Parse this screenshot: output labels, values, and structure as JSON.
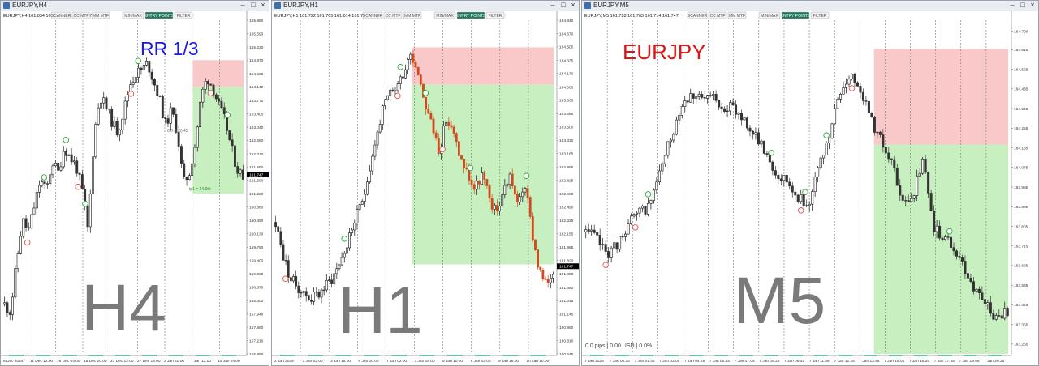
{
  "windows": [
    {
      "id": "h4",
      "window_title": "EURJPY,H4",
      "info_line": "EURJPY,H4  161.834 161.749 161.674 161.747",
      "toolbar": [
        "SCANNER",
        "CC MTF",
        "MM MTF",
        "MIN/MAX",
        "ENTRY POINTS",
        "FILTER"
      ],
      "active_button": "ENTRY POINTS",
      "big_label": "H4",
      "overlay_label": "RR 1/3",
      "annotations": [
        "0.6 (2.5):45",
        "tp1 = 24.9th"
      ],
      "window_controls": [
        "–",
        "□",
        "×"
      ]
    },
    {
      "id": "h1",
      "window_title": "EURJPY,H1",
      "info_line": "EURJPY,H1  161.722 161.765 161.614 161.747",
      "toolbar": [
        "SCANNER",
        "CC MTF",
        "MM MTF",
        "MIN/MAX",
        "ENTRY POINTS",
        "FILTER"
      ],
      "active_button": "ENTRY POINTS",
      "big_label": "H1",
      "window_controls": [
        "–",
        "□",
        "×"
      ]
    },
    {
      "id": "m5",
      "window_title": "EURJPY,M5",
      "info_line": "EURJPY,M5  161.728 161.763 161.714 161.747",
      "toolbar": [
        "SCANNER",
        "CC MTF",
        "MM MTF",
        "MIN/MAX",
        "ENTRY POINTS",
        "FILTER"
      ],
      "active_button": "ENTRY POINTS",
      "big_label": "M5",
      "overlay_label": "EURJPY",
      "status_text": "0.0 pips | 0.00 USD | 0.0%",
      "window_controls": [
        "–",
        "□",
        "×"
      ]
    }
  ],
  "colors": {
    "bull": "#111111",
    "bear": "#d04a1a",
    "stop_zone": "#f9c9c9",
    "target_zone": "#c8efc0",
    "marker_green": "#2aa838",
    "marker_red": "#e05050",
    "rr_label": "#1a1ae0",
    "symbol_label": "#e01414",
    "big_label": "#7a7a7a",
    "button_active": "#1f7a5a",
    "price_tag": "#000000"
  },
  "chart_data": [
    {
      "type": "candlestick",
      "symbol": "EURJPY",
      "timeframe": "H4",
      "y_ticks": [
        165.96,
        165.59,
        165.23,
        164.87,
        164.5,
        164.14,
        163.77,
        163.4,
        163.04,
        162.68,
        162.31,
        161.95,
        161.59,
        161.22,
        160.86,
        160.49,
        160.13,
        159.76,
        159.4,
        159.03,
        158.67,
        158.3,
        157.94,
        157.58,
        157.21,
        156.85
      ],
      "ylim": [
        156.85,
        165.96
      ],
      "last_price": 161.747,
      "x_ticks": [
        "6 Dec 2024",
        "11 Dec 12:00",
        "16 Dec 04:00",
        "18 Dec 20:00",
        "23 Dec 12:00",
        "27 Dec 16:00",
        "2 Jan 20:00",
        "7 Jan 12:00",
        "10 Jan 04:00"
      ],
      "zones": {
        "stop": [
          164.14,
          164.87
        ],
        "target": [
          161.22,
          164.14
        ],
        "start_fraction": 0.78
      },
      "path": [
        158.2,
        158.0,
        159.3,
        160.5,
        160.2,
        160.9,
        161.6,
        161.3,
        162.1,
        161.8,
        162.5,
        162.2,
        162.0,
        161.3,
        160.2,
        162.8,
        163.9,
        163.6,
        163.2,
        162.9,
        163.5,
        164.2,
        164.5,
        164.6,
        164.8,
        164.3,
        163.8,
        163.1,
        163.5,
        162.9,
        161.5,
        161.8,
        162.6,
        163.9,
        164.4,
        164.1,
        163.6,
        163.2,
        162.5,
        161.9,
        161.7
      ],
      "markers_green": [
        0.17,
        0.26,
        0.34,
        0.56,
        0.93
      ],
      "markers_red": [
        0.1,
        0.31,
        0.53,
        0.86
      ]
    },
    {
      "type": "candlestick",
      "symbol": "EURJPY",
      "timeframe": "H1",
      "y_ticks": [
        164.84,
        164.67,
        164.505,
        164.335,
        164.17,
        164.0,
        163.835,
        163.665,
        163.5,
        163.33,
        163.165,
        162.995,
        162.825,
        162.66,
        162.49,
        162.325,
        162.155,
        161.985,
        161.82,
        161.65,
        161.48,
        161.315,
        161.145,
        160.98,
        160.81,
        160.645
      ],
      "ylim": [
        160.645,
        164.84
      ],
      "last_price": 161.747,
      "x_ticks": [
        "2 Jan 2025",
        "3 Jan 02:00",
        "3 Jan 18:00",
        "6 Jan 10:00",
        "7 Jan 02:00",
        "7 Jan 18:00",
        "8 Jan 10:00",
        "9 Jan 02:00",
        "9 Jan 18:00",
        "10 Jan 10:00"
      ],
      "zones": {
        "stop": [
          164.03,
          164.5
        ],
        "target": [
          161.77,
          164.03
        ],
        "start_fraction": 0.49
      },
      "path": [
        162.3,
        161.9,
        161.6,
        161.5,
        161.4,
        161.35,
        161.4,
        161.5,
        161.6,
        161.8,
        162.0,
        162.3,
        162.5,
        162.9,
        163.3,
        163.7,
        163.9,
        164.0,
        164.2,
        164.45,
        164.2,
        163.8,
        163.5,
        163.2,
        163.6,
        163.4,
        163.1,
        162.9,
        162.7,
        162.9,
        162.6,
        162.4,
        162.7,
        162.9,
        162.5,
        162.8,
        162.2,
        161.7,
        161.5,
        161.7
      ],
      "markers_green": [
        0.25,
        0.45,
        0.54,
        0.7,
        0.9
      ],
      "markers_red": [
        0.04,
        0.44,
        0.6
      ]
    },
    {
      "type": "candlestick",
      "symbol": "EURJPY",
      "timeframe": "M5",
      "y_ticks": [
        164.7,
        164.615,
        164.525,
        164.435,
        164.345,
        164.255,
        164.165,
        164.075,
        163.985,
        163.895,
        163.805,
        163.715,
        163.625,
        163.535,
        163.445,
        163.355,
        163.265
      ],
      "ylim": [
        163.22,
        164.75
      ],
      "last_price": null,
      "x_ticks": [
        "7 Jan 2025",
        "7 Jan 00:25",
        "7 Jan 01:45",
        "7 Jan 03:05",
        "7 Jan 04:25",
        "7 Jan 05:45",
        "7 Jan 07:05",
        "7 Jan 08:25",
        "7 Jan 09:45",
        "7 Jan 11:05",
        "7 Jan 12:25",
        "7 Jan 13:45",
        "7 Jan 15:05",
        "7 Jan 16:25",
        "7 Jan 17:45",
        "7 Jan 19:05",
        "7 Jan 20:25"
      ],
      "zones": {
        "stop": [
          164.18,
          164.62
        ],
        "target": [
          163.22,
          164.18
        ],
        "start_fraction": 0.68
      },
      "path": [
        163.78,
        163.75,
        163.68,
        163.72,
        163.82,
        163.86,
        163.9,
        164.05,
        164.2,
        164.36,
        164.42,
        164.38,
        164.4,
        164.36,
        164.34,
        164.3,
        164.22,
        164.15,
        164.05,
        164.02,
        163.95,
        163.9,
        164.05,
        164.2,
        164.4,
        164.5,
        164.45,
        164.3,
        164.2,
        164.1,
        163.9,
        163.95,
        164.1,
        163.8,
        163.75,
        163.7,
        163.6,
        163.5,
        163.45,
        163.38,
        163.42
      ],
      "markers_green": [
        0.15,
        0.44,
        0.52,
        0.57,
        0.86
      ],
      "markers_red": [
        0.05,
        0.12,
        0.51,
        0.63
      ]
    }
  ]
}
